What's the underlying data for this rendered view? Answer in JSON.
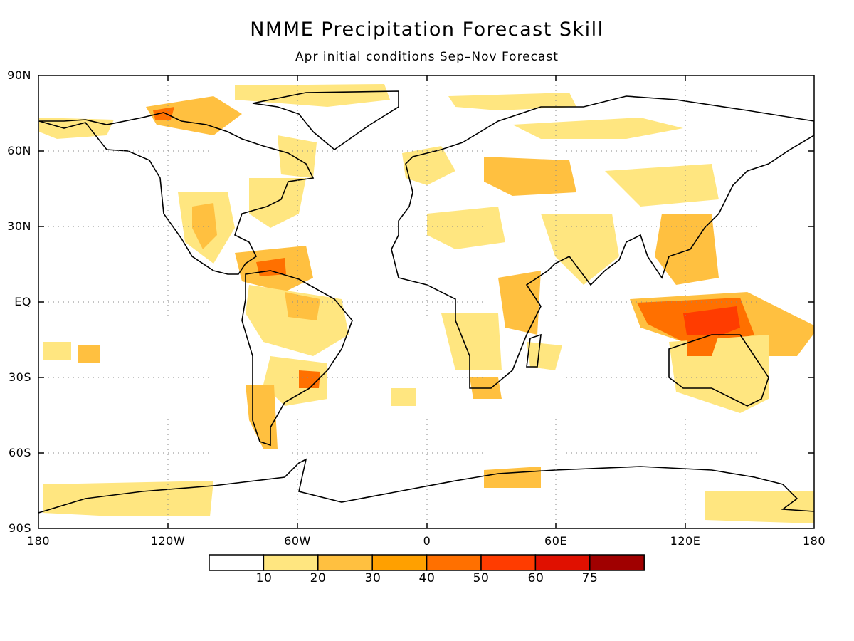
{
  "title": "NMME Precipitation Forecast Skill",
  "subtitle": "Apr initial conditions   Sep–Nov Forecast",
  "axes": {
    "lat_labels": [
      "90N",
      "60N",
      "30N",
      "EQ",
      "30S",
      "60S",
      "90S"
    ],
    "lon_labels": [
      "180",
      "120W",
      "60W",
      "0",
      "60E",
      "120E",
      "180"
    ]
  },
  "colorbar": {
    "labels": [
      "10",
      "20",
      "30",
      "40",
      "50",
      "60",
      "75"
    ],
    "colors": [
      "#ffffff",
      "#ffe680",
      "#ffc040",
      "#ffa000",
      "#ff7000",
      "#ff3c00",
      "#e01000",
      "#a00000"
    ]
  },
  "chart_data": {
    "type": "heatmap",
    "title": "NMME Precipitation Forecast Skill",
    "subtitle": "Apr initial conditions   Sep–Nov Forecast",
    "x_range": [
      -180,
      180
    ],
    "y_range": [
      -90,
      90
    ],
    "grid": true,
    "legend": "bottom",
    "levels": [
      10,
      20,
      30,
      40,
      50,
      60,
      75
    ]
  }
}
